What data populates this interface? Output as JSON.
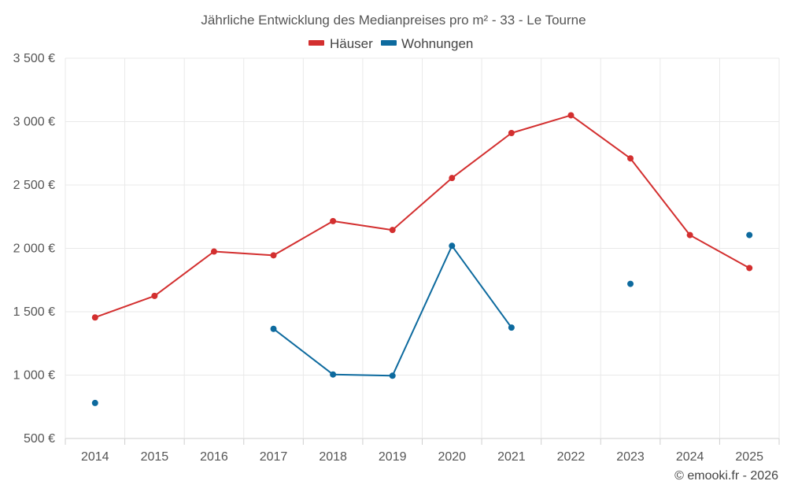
{
  "chart_data": {
    "type": "line",
    "title": "Jährliche Entwicklung des Medianpreises pro m² - 33 - Le Tourne",
    "xlabel": "",
    "ylabel": "",
    "categories": [
      "2014",
      "2015",
      "2016",
      "2017",
      "2018",
      "2019",
      "2020",
      "2021",
      "2022",
      "2023",
      "2024",
      "2025"
    ],
    "ylim": [
      500,
      3500
    ],
    "yticks": [
      500,
      1000,
      1500,
      2000,
      2500,
      3000,
      3500
    ],
    "ytick_labels": [
      "500 €",
      "1 000 €",
      "1 500 €",
      "2 000 €",
      "2 500 €",
      "3 000 €",
      "3 500 €"
    ],
    "grid": true,
    "legend_position": "top-center",
    "series": [
      {
        "name": "Häuser",
        "color": "#d32f2f",
        "values": [
          1455,
          1625,
          1975,
          1945,
          2215,
          2145,
          2555,
          2910,
          3050,
          2710,
          2105,
          1845
        ]
      },
      {
        "name": "Wohnungen",
        "color": "#0d6a9e",
        "values": [
          780,
          null,
          null,
          1365,
          1005,
          995,
          2020,
          1375,
          null,
          1720,
          null,
          2105
        ]
      }
    ],
    "credit": "© emooki.fr - 2026"
  }
}
